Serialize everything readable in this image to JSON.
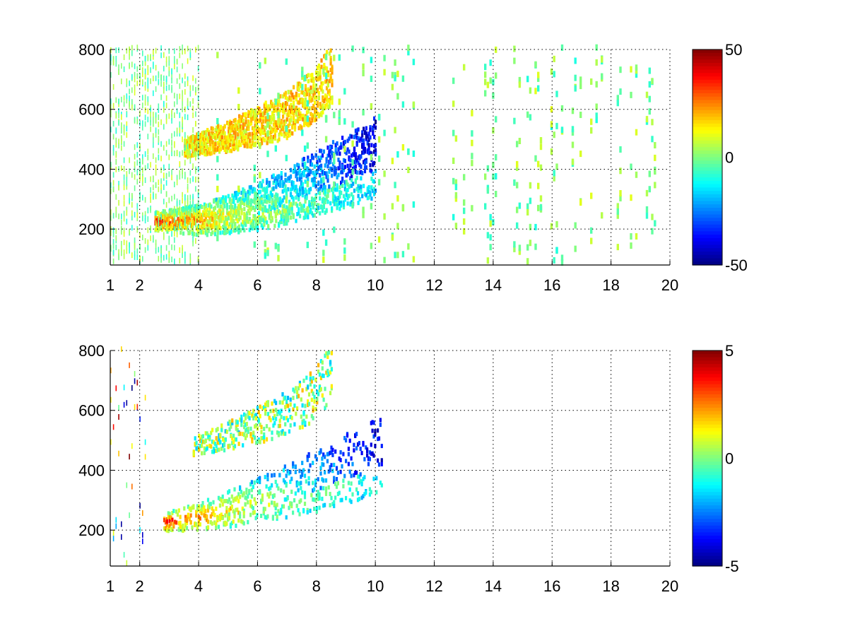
{
  "chart_data": [
    {
      "type": "heatmap",
      "title": "",
      "xlabel": "",
      "ylabel": "",
      "xlim": [
        1,
        20
      ],
      "ylim": [
        80,
        800
      ],
      "x_ticks": [
        "1",
        "2",
        "4",
        "6",
        "8",
        "10",
        "12",
        "14",
        "16",
        "18",
        "20"
      ],
      "x_tick_values": [
        1,
        2,
        4,
        6,
        8,
        10,
        12,
        14,
        16,
        18,
        20
      ],
      "y_ticks": [
        "200",
        "400",
        "600",
        "800"
      ],
      "y_tick_values": [
        200,
        400,
        600,
        800
      ],
      "grid": true,
      "colormap": "jet",
      "clim": [
        -50,
        50
      ],
      "colorbar_ticks": [
        "50",
        "0",
        "-50"
      ],
      "colorbar_tick_values": [
        50,
        0,
        -50
      ],
      "ridges": [
        {
          "x": [
            2.5,
            4,
            5,
            6,
            7,
            8,
            9,
            10
          ],
          "y": [
            225,
            230,
            250,
            275,
            310,
            355,
            395,
            440
          ],
          "value_min": -40,
          "value_max": 40
        },
        {
          "x": [
            3.5,
            5,
            6,
            7,
            8,
            8.5
          ],
          "y": [
            470,
            510,
            545,
            580,
            650,
            720
          ],
          "value_min": 5,
          "value_max": 25
        }
      ],
      "background_noise": {
        "x_range": [
          1,
          20
        ],
        "dense_until_x": 4,
        "value_range": [
          -10,
          10
        ]
      }
    },
    {
      "type": "heatmap",
      "title": "",
      "xlabel": "",
      "ylabel": "",
      "xlim": [
        1,
        20
      ],
      "ylim": [
        80,
        800
      ],
      "x_ticks": [
        "1",
        "2",
        "4",
        "6",
        "8",
        "10",
        "12",
        "14",
        "16",
        "18",
        "20"
      ],
      "x_tick_values": [
        1,
        2,
        4,
        6,
        8,
        10,
        12,
        14,
        16,
        18,
        20
      ],
      "y_ticks": [
        "200",
        "400",
        "600",
        "800"
      ],
      "y_tick_values": [
        200,
        400,
        600,
        800
      ],
      "grid": true,
      "colormap": "jet",
      "clim": [
        -5,
        5
      ],
      "colorbar_ticks": [
        "5",
        "0",
        "-5"
      ],
      "colorbar_tick_values": [
        5,
        0,
        -5
      ],
      "ridges": [
        {
          "x": [
            2.8,
            4,
            5,
            6,
            7,
            8,
            9,
            10.2
          ],
          "y": [
            225,
            245,
            270,
            300,
            330,
            365,
            405,
            450
          ],
          "value_min": -4,
          "value_max": 4
        },
        {
          "x": [
            3.8,
            5,
            6,
            7,
            8,
            8.5
          ],
          "y": [
            480,
            515,
            550,
            590,
            660,
            730
          ],
          "value_min": -2,
          "value_max": 2
        }
      ],
      "background_noise": {
        "x_range": [
          1,
          3
        ],
        "dense_until_x": 2.2,
        "value_range": [
          -5,
          5
        ]
      }
    }
  ]
}
